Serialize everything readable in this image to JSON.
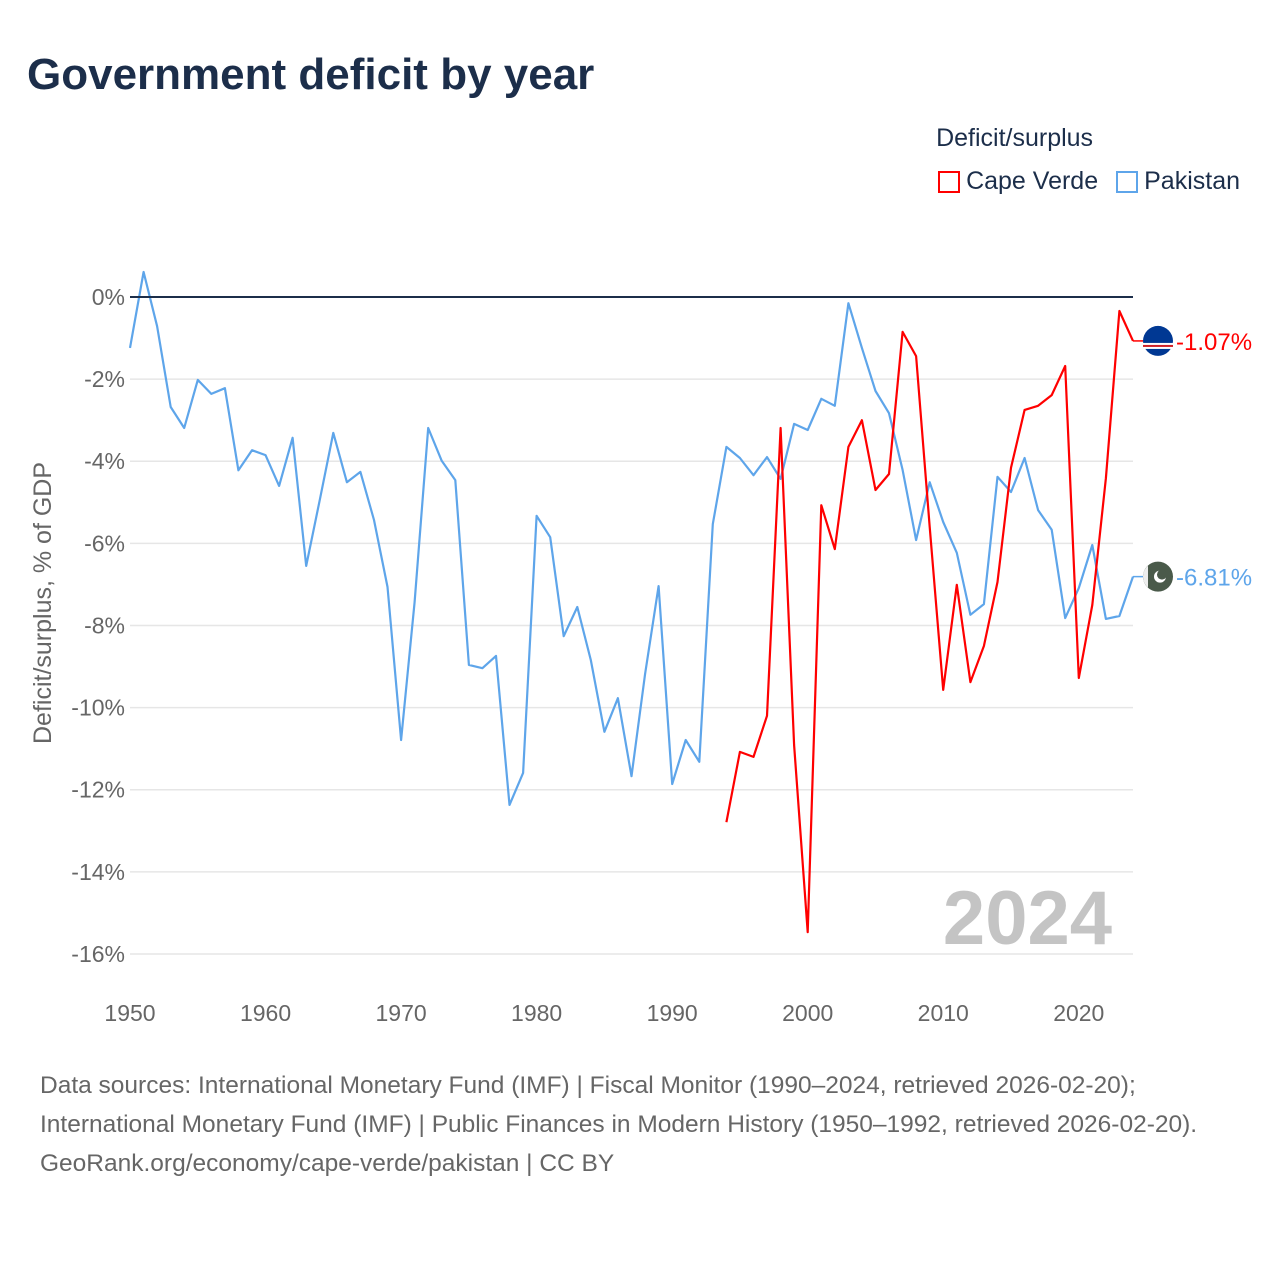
{
  "title": "Government deficit by year",
  "legend": {
    "title": "Deficit/surplus"
  },
  "footer": {
    "sources": "Data sources: International Monetary Fund (IMF) | Fiscal Monitor (1990–2024, retrieved 2026-02-20); International Monetary Fund (IMF) | Public Finances in Modern History (1950–1992, retrieved 2026-02-20).",
    "credit": "GeoRank.org/economy/cape-verde/pakistan | CC BY"
  },
  "chart_data": {
    "type": "line",
    "title": "Government deficit by year",
    "xlabel": "",
    "ylabel": "Deficit/surplus, % of GDP",
    "xlim": [
      1950,
      2024
    ],
    "ylim": [
      -16,
      0
    ],
    "xticks": [
      1950,
      1960,
      1970,
      1980,
      1990,
      2000,
      2010,
      2020
    ],
    "xtick_labels": [
      "1950",
      "1960",
      "1970",
      "1980",
      "1990",
      "2000",
      "2010",
      "2020"
    ],
    "yticks": [
      0,
      -2,
      -4,
      -6,
      -8,
      -10,
      -12,
      -14,
      -16
    ],
    "ytick_labels": [
      "0%",
      "-2%",
      "-4%",
      "-6%",
      "-8%",
      "-10%",
      "-12%",
      "-14%",
      "-16%"
    ],
    "grid": true,
    "legend_position": "top-right",
    "year_watermark": "2024",
    "series": [
      {
        "name": "Cape Verde",
        "color": "#ff0000",
        "end_label": "-1.07%",
        "start_year": 1994,
        "values": [
          -12.79,
          -11.08,
          -11.2,
          -10.2,
          -3.19,
          -10.91,
          -15.47,
          -5.07,
          -6.14,
          -3.65,
          -3.0,
          -4.7,
          -4.31,
          -0.85,
          -1.44,
          -5.6,
          -9.57,
          -7.01,
          -9.38,
          -8.5,
          -6.94,
          -4.16,
          -2.75,
          -2.65,
          -2.39,
          -1.68,
          -9.28,
          -7.5,
          -4.41,
          -0.34,
          -1.07
        ]
      },
      {
        "name": "Pakistan",
        "color": "#5ea5ea",
        "end_label": "-6.81%",
        "start_year": 1950,
        "values": [
          -1.24,
          0.61,
          -0.71,
          -2.68,
          -3.19,
          -2.02,
          -2.36,
          -2.22,
          -4.22,
          -3.73,
          -3.85,
          -4.6,
          -3.43,
          -6.55,
          -4.94,
          -3.31,
          -4.51,
          -4.26,
          -5.43,
          -7.06,
          -10.79,
          -7.43,
          -3.19,
          -3.99,
          -4.46,
          -8.96,
          -9.04,
          -8.74,
          -12.37,
          -11.59,
          -5.33,
          -5.85,
          -8.26,
          -7.55,
          -8.84,
          -10.59,
          -9.77,
          -11.67,
          -9.18,
          -7.04,
          -11.86,
          -10.79,
          -11.32,
          -5.53,
          -3.65,
          -3.92,
          -4.34,
          -3.9,
          -4.43,
          -3.09,
          -3.24,
          -2.48,
          -2.65,
          -0.15,
          -1.24,
          -2.29,
          -2.83,
          -4.21,
          -5.92,
          -4.51,
          -5.48,
          -6.23,
          -7.74,
          -7.48,
          -4.38,
          -4.75,
          -3.92,
          -5.19,
          -5.67,
          -7.82,
          -7.09,
          -6.04,
          -7.84,
          -7.77,
          -6.81
        ]
      }
    ]
  }
}
